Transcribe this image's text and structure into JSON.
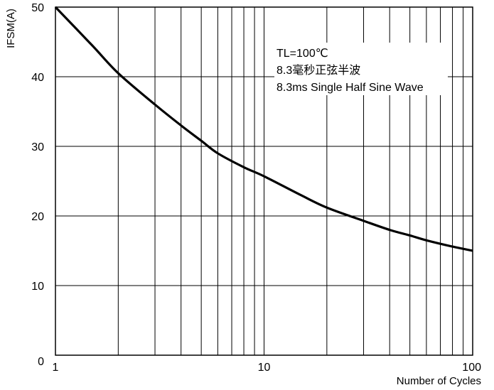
{
  "chart_data": {
    "type": "line",
    "title": "",
    "xlabel": "Number of Cycles",
    "ylabel": "IFSM(A)",
    "x_scale": "log",
    "xlim": [
      1,
      100
    ],
    "ylim": [
      0,
      50
    ],
    "x_ticks": [
      "1",
      "10",
      "100"
    ],
    "y_ticks": [
      "0",
      "10",
      "20",
      "30",
      "40",
      "50"
    ],
    "grid": true,
    "annotations": [
      "TL=100℃",
      "8.3毫秒正弦半波",
      "8.3ms Single Half Sine Wave"
    ],
    "series": [
      {
        "x": [
          1,
          1.5,
          2,
          3,
          4,
          5,
          6,
          8,
          10,
          15,
          20,
          30,
          40,
          50,
          60,
          80,
          100
        ],
        "y": [
          50,
          44.5,
          40.5,
          36,
          33,
          30.8,
          29,
          27,
          25.7,
          23,
          21.2,
          19.3,
          18,
          17.2,
          16.5,
          15.6,
          15
        ]
      }
    ]
  }
}
